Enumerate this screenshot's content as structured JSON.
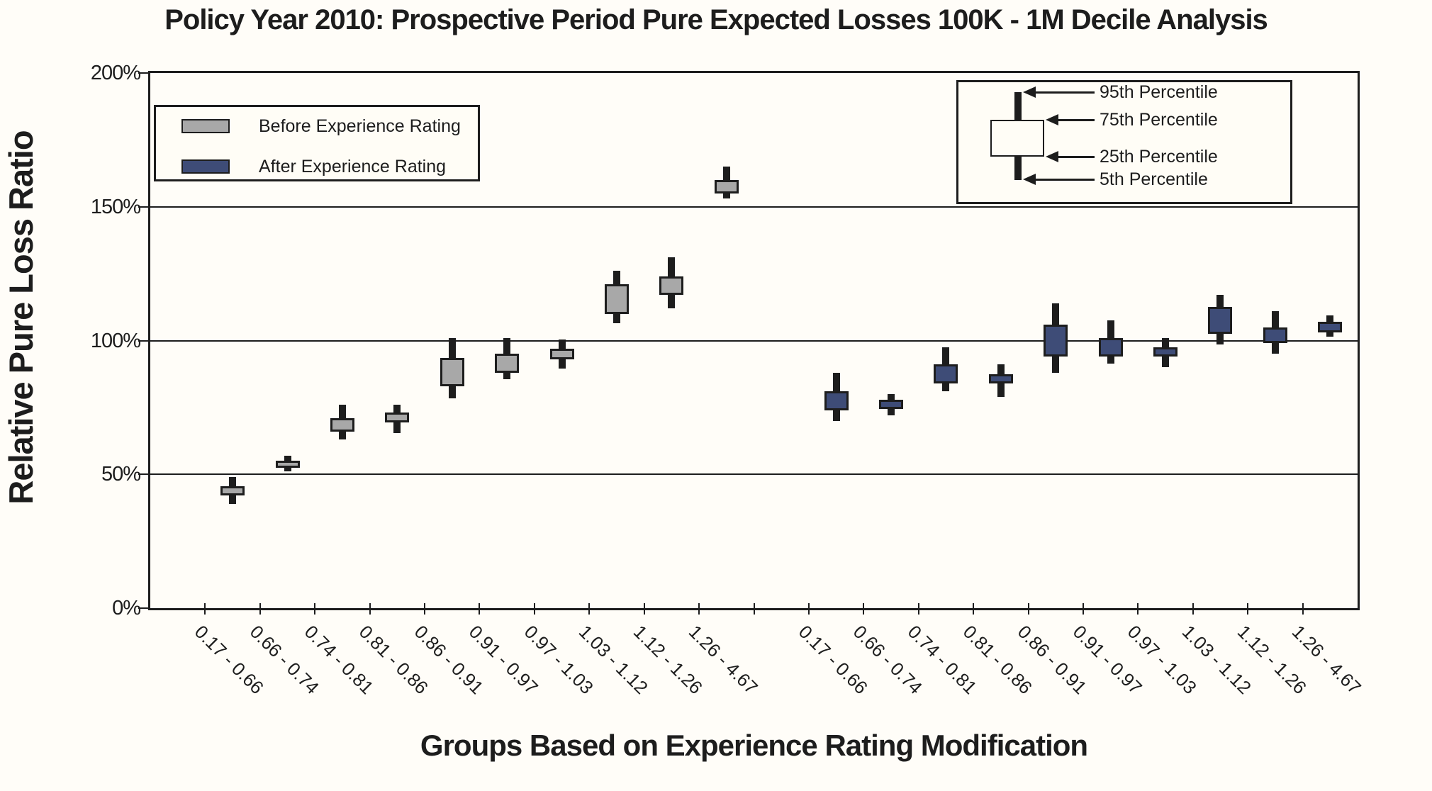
{
  "title": "Policy Year 2010: Prospective Period Pure Expected Losses 100K - 1M Decile Analysis",
  "y_axis": {
    "title": "Relative Pure Loss Ratio",
    "ticks": [
      {
        "label": "200%",
        "value": 200
      },
      {
        "label": "150%",
        "value": 150
      },
      {
        "label": "100%",
        "value": 100
      },
      {
        "label": "50%",
        "value": 50
      },
      {
        "label": "0%",
        "value": 0
      }
    ]
  },
  "x_axis": {
    "title": "Groups Based on Experience Rating Modification",
    "categories": [
      "0.17 - 0.66",
      "0.66 - 0.74",
      "0.74 - 0.81",
      "0.81 - 0.86",
      "0.86 - 0.91",
      "0.91 - 0.97",
      "0.97 - 1.03",
      "1.03 - 1.12",
      "1.12 - 1.26",
      "1.26 - 4.67"
    ]
  },
  "legend": {
    "before_label": "Before Experience Rating",
    "after_label": "After Experience Rating"
  },
  "percentile_legend": {
    "items": [
      "95th Percentile",
      "75th Percentile",
      "25th Percentile",
      "5th Percentile"
    ]
  },
  "colors": {
    "background": "#fffdf8",
    "line": "#1d1d1d",
    "before": "#a8a8a8",
    "after": "#3e4c77",
    "legend_background": "#fffdf6"
  },
  "chart_data": {
    "type": "box",
    "title": "Policy Year 2010: Prospective Period Pure Expected Losses 100K - 1M Decile Analysis",
    "xlabel": "Groups Based on Experience Rating Modification",
    "ylabel": "Relative Pure Loss Ratio",
    "ylim": [
      0,
      200
    ],
    "y_unit": "percent",
    "gridlines_at": [
      50,
      100,
      150
    ],
    "legend_position": "top-left",
    "whisker_definition": {
      "top": "95th percentile",
      "box_top": "75th percentile",
      "box_bottom": "25th percentile",
      "bottom": "5th percentile"
    },
    "categories": [
      "0.17 - 0.66",
      "0.66 - 0.74",
      "0.74 - 0.81",
      "0.81 - 0.86",
      "0.86 - 0.91",
      "0.91 - 0.97",
      "0.97 - 1.03",
      "1.03 - 1.12",
      "1.12 - 1.26",
      "1.26 - 4.67"
    ],
    "series": [
      {
        "name": "Before Experience Rating",
        "color": "#a8a8a8",
        "boxes": [
          {
            "p5": 39,
            "p25": 42,
            "p75": 45.5,
            "p95": 49
          },
          {
            "p5": 51,
            "p25": 52.5,
            "p75": 55,
            "p95": 57
          },
          {
            "p5": 63,
            "p25": 66,
            "p75": 71,
            "p95": 76
          },
          {
            "p5": 65.5,
            "p25": 69.5,
            "p75": 73,
            "p95": 76
          },
          {
            "p5": 78.5,
            "p25": 83,
            "p75": 93.5,
            "p95": 101
          },
          {
            "p5": 85.5,
            "p25": 88,
            "p75": 95,
            "p95": 101
          },
          {
            "p5": 89.5,
            "p25": 93,
            "p75": 97,
            "p95": 100.5
          },
          {
            "p5": 106.5,
            "p25": 110,
            "p75": 121,
            "p95": 126
          },
          {
            "p5": 112,
            "p25": 117,
            "p75": 124,
            "p95": 131
          },
          {
            "p5": 153,
            "p25": 155,
            "p75": 160,
            "p95": 165
          }
        ]
      },
      {
        "name": "After Experience Rating",
        "color": "#3e4c77",
        "boxes": [
          {
            "p5": 70,
            "p25": 74,
            "p75": 81,
            "p95": 88
          },
          {
            "p5": 72,
            "p25": 74.5,
            "p75": 78,
            "p95": 80
          },
          {
            "p5": 81,
            "p25": 84,
            "p75": 91,
            "p95": 97.5
          },
          {
            "p5": 79,
            "p25": 84,
            "p75": 87.5,
            "p95": 91
          },
          {
            "p5": 88,
            "p25": 94,
            "p75": 106,
            "p95": 114
          },
          {
            "p5": 91.5,
            "p25": 94,
            "p75": 101,
            "p95": 107.5
          },
          {
            "p5": 90,
            "p25": 94,
            "p75": 97.5,
            "p95": 101
          },
          {
            "p5": 98.5,
            "p25": 102.5,
            "p75": 112.5,
            "p95": 117
          },
          {
            "p5": 95,
            "p25": 99,
            "p75": 105,
            "p95": 111
          },
          {
            "p5": 101.5,
            "p25": 103,
            "p75": 107,
            "p95": 109.5
          }
        ]
      }
    ]
  }
}
